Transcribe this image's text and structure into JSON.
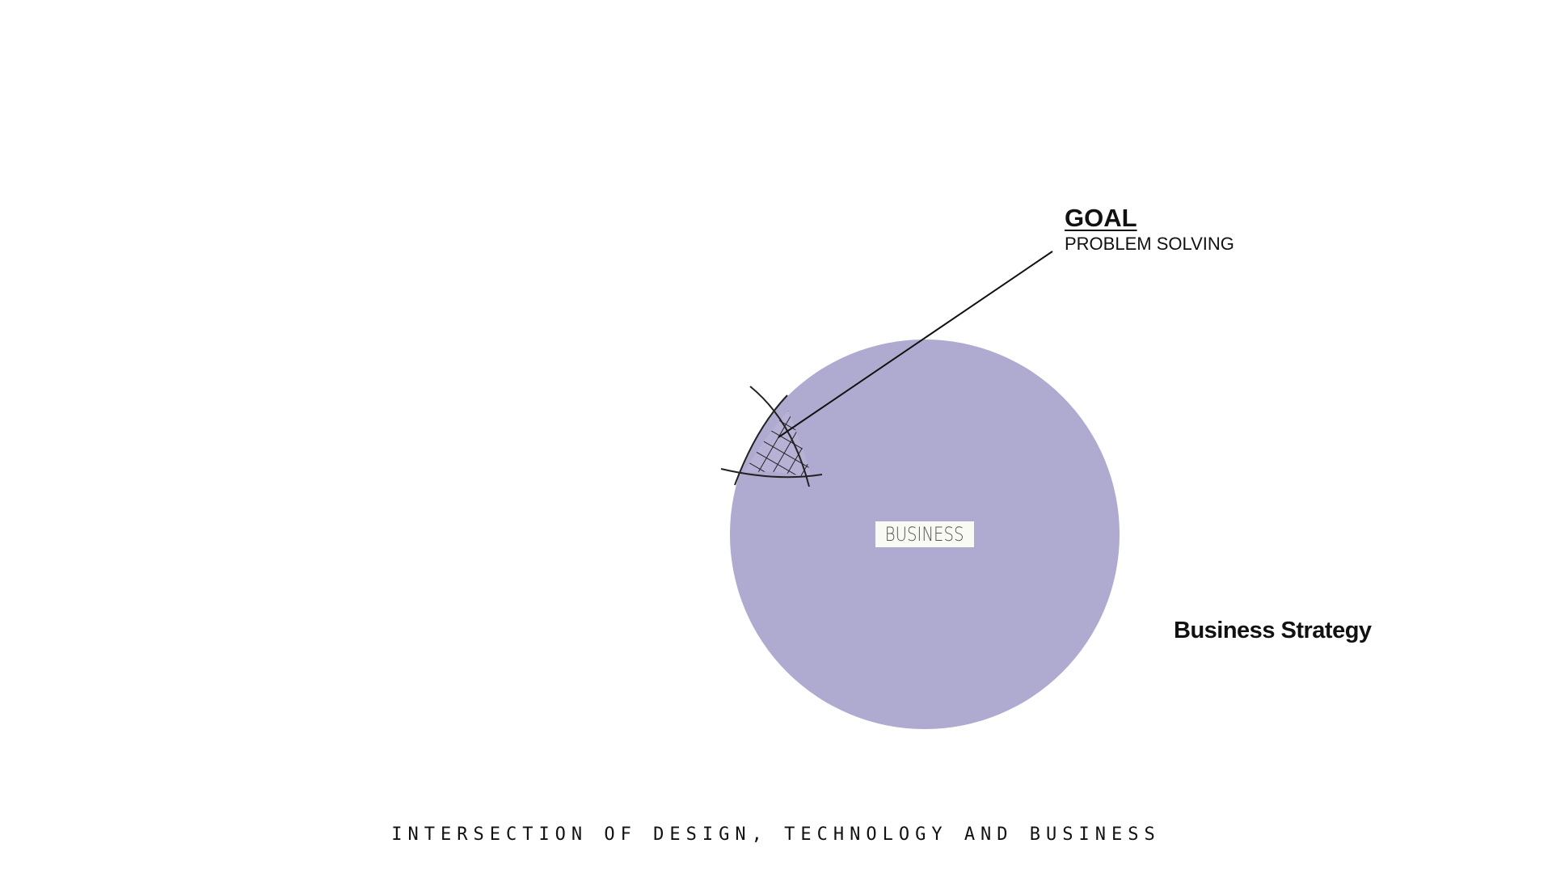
{
  "diagram": {
    "circle_label": "BUSINESS",
    "circle_color": "#afaacf",
    "callout_title": "GOAL",
    "callout_subtitle": "PROBLEM SOLVING",
    "side_label": "Business Strategy",
    "caption": "INTERSECTION OF DESIGN, TECHNOLOGY AND BUSINESS",
    "hatch_region": "crosshatched-intersection"
  }
}
